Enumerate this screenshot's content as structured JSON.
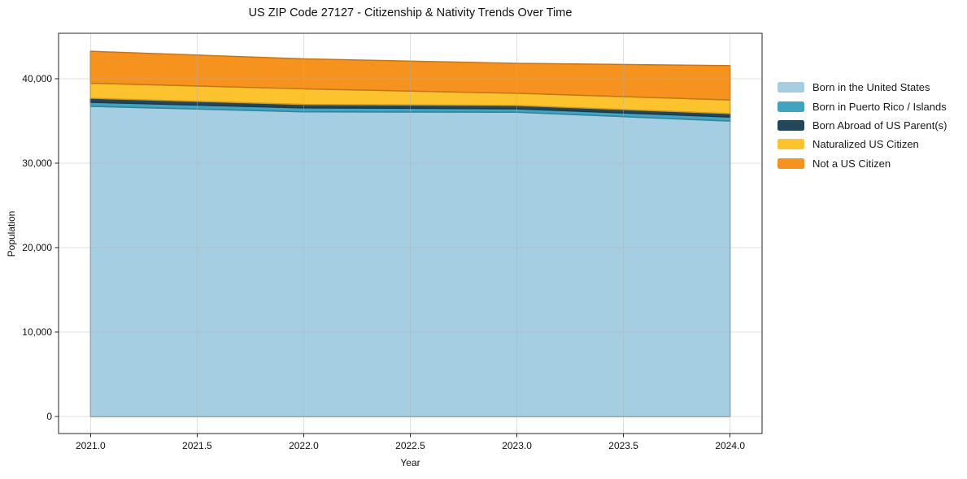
{
  "chart_data": {
    "type": "area",
    "stacked": true,
    "title": "US ZIP Code 27127 - Citizenship & Nativity Trends Over Time",
    "xlabel": "Year",
    "ylabel": "Population",
    "x": [
      2021,
      2022,
      2023,
      2024
    ],
    "series": [
      {
        "name": "Born in the United States",
        "color": "#a6cee3",
        "values": [
          36750,
          36100,
          36050,
          35000
        ]
      },
      {
        "name": "Born in Puerto Rico / Islands",
        "color": "#40a4c1",
        "values": [
          480,
          470,
          410,
          480
        ]
      },
      {
        "name": "Born Abroad of US Parent(s)",
        "color": "#24465a",
        "values": [
          480,
          400,
          400,
          410
        ]
      },
      {
        "name": "Naturalized US Citizen",
        "color": "#fcc32e",
        "values": [
          1780,
          1850,
          1440,
          1610
        ]
      },
      {
        "name": "Not a US Citizen",
        "color": "#f6931f",
        "values": [
          3780,
          3550,
          3540,
          4070
        ]
      }
    ],
    "totals": [
      43270,
      42370,
      41840,
      41570
    ],
    "xlim": [
      2020.85,
      2024.15
    ],
    "ylim": [
      -2000,
      45400
    ],
    "xticks": [
      2021.0,
      2021.5,
      2022.0,
      2022.5,
      2023.0,
      2023.5,
      2024.0
    ],
    "xtick_labels": [
      "2021.0",
      "2021.5",
      "2022.0",
      "2022.5",
      "2023.0",
      "2023.5",
      "2024.0"
    ],
    "yticks": [
      0,
      10000,
      20000,
      30000,
      40000
    ],
    "ytick_labels": [
      "0",
      "10,000",
      "20,000",
      "30,000",
      "40,000"
    ],
    "grid": true,
    "legend_position": "right",
    "colors": {
      "spine": "#262626",
      "grid": "#b0b0b0",
      "background": "#ffffff"
    }
  }
}
